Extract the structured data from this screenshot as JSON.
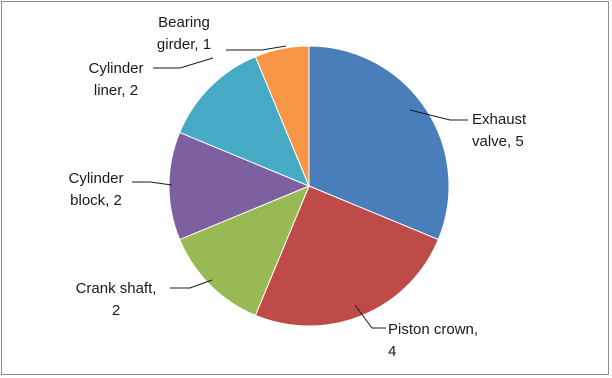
{
  "chart_data": {
    "type": "pie",
    "title": "",
    "start_angle_deg": 0,
    "direction": "clockwise",
    "slices": [
      {
        "label_lines": [
          "Exhaust",
          "valve, 5"
        ],
        "category": "Exhaust valve",
        "value": 5,
        "color": "#4a7ebb"
      },
      {
        "label_lines": [
          "Piston crown,",
          "4"
        ],
        "category": "Piston crown",
        "value": 4,
        "color": "#be4b48"
      },
      {
        "label_lines": [
          "Crank shaft,",
          "2"
        ],
        "category": "Crank shaft",
        "value": 2,
        "color": "#98b954"
      },
      {
        "label_lines": [
          "Cylinder",
          "block, 2"
        ],
        "category": "Cylinder block",
        "value": 2,
        "color": "#7d60a0"
      },
      {
        "label_lines": [
          "Cylinder",
          "liner, 2"
        ],
        "category": "Cylinder liner",
        "value": 2,
        "color": "#46aac5"
      },
      {
        "label_lines": [
          "Bearing",
          "girder, 1"
        ],
        "category": "Bearing girder",
        "value": 1,
        "color": "#f79646"
      }
    ]
  }
}
